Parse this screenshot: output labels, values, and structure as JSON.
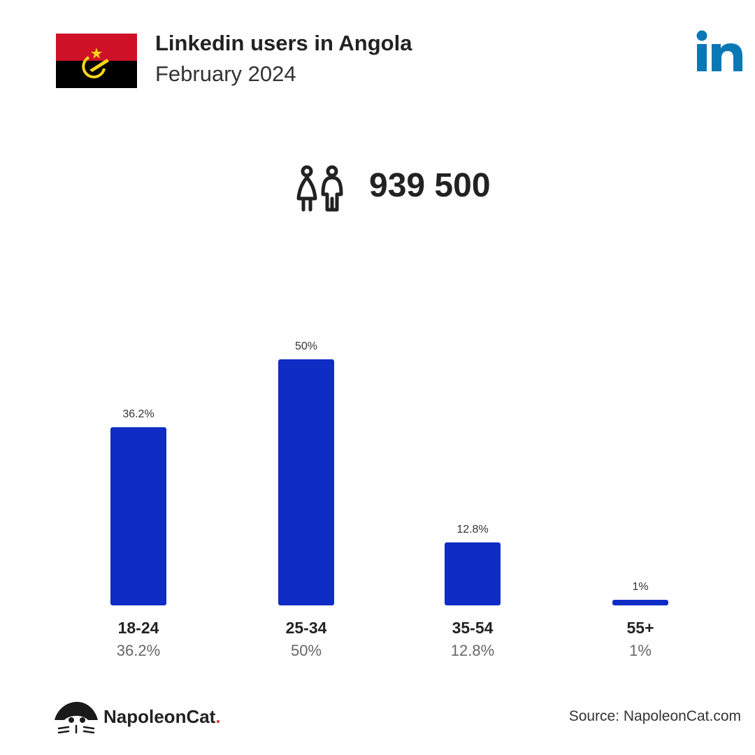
{
  "header": {
    "title": "Linkedin users in Angola",
    "subtitle": "February 2024"
  },
  "total_users": "939 500",
  "icons": {
    "flag": "angola-flag-icon",
    "logo": "linkedin-logo-icon",
    "users": "users-icon",
    "brand": "napoleoncat-logo-icon"
  },
  "colors": {
    "bar": "#0f2cc4",
    "linkedin": "#0a78b5",
    "flag_red": "#ce1126",
    "flag_black": "#000000",
    "flag_emblem": "#f9d616"
  },
  "chart_data": {
    "type": "bar",
    "categories": [
      "18-24",
      "25-34",
      "35-54",
      "55+"
    ],
    "values": [
      36.2,
      50,
      12.8,
      1
    ],
    "value_labels": [
      "36.2%",
      "50%",
      "12.8%",
      "1%"
    ],
    "ylim": [
      0,
      50
    ]
  },
  "footer": {
    "brand_name": "NapoleonCat",
    "brand_dot": ".",
    "source": "Source: NapoleonCat.com"
  }
}
